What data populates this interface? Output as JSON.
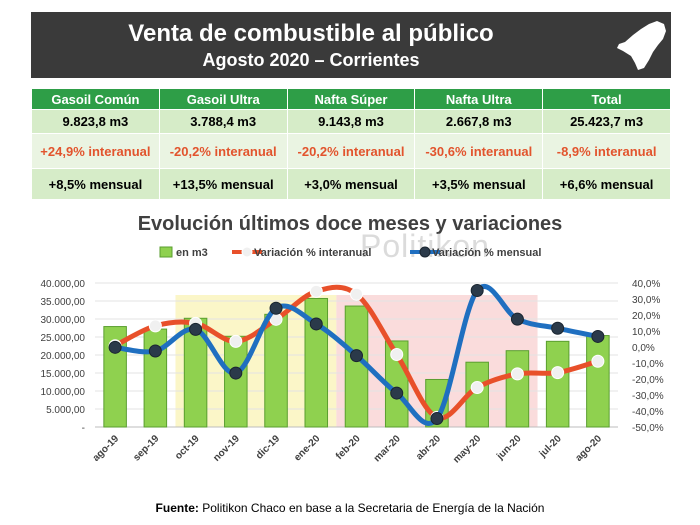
{
  "header": {
    "title": "Venta de combustible al público",
    "subtitle": "Agosto 2020 – Corrientes"
  },
  "summary": {
    "columns": [
      "Gasoil Común",
      "Gasoil Ultra",
      "Nafta Súper",
      "Nafta Ultra",
      "Total"
    ],
    "volumes": [
      "9.823,8 m3",
      "3.788,4 m3",
      "9.143,8 m3",
      "2.667,8 m3",
      "25.423,7 m3"
    ],
    "interanual": [
      "+24,9% interanual",
      "-20,2% interanual",
      "-20,2% interanual",
      "-30,6% interanual",
      "-8,9% interanual"
    ],
    "mensual": [
      "+8,5% mensual",
      "+13,5% mensual",
      "+3,0% mensual",
      "+3,5% mensual",
      "+6,6% mensual"
    ]
  },
  "watermark": "Politikon",
  "source": {
    "label": "Fuente:",
    "text": " Politikon Chaco en base a la Secretaria de Energía de la Nación"
  },
  "colors": {
    "header_bg": "#3a3a3a",
    "table_header": "#2e9e47",
    "bar_fill": "#8fd14f",
    "bar_stroke": "#5a9e2f",
    "interanual_line": "#e8502a",
    "mensual_line": "#1f6fc0",
    "highlight_yellow": "#fbf6c8",
    "highlight_red": "#fadcdc"
  },
  "chart_data": {
    "type": "bar",
    "title": "Evolución últimos doce meses y variaciones",
    "categories": [
      "ago-19",
      "sep-19",
      "oct-19",
      "nov-19",
      "dic-19",
      "ene-20",
      "feb-20",
      "mar-20",
      "abr-20",
      "may-20",
      "jun-20",
      "jul-20",
      "ago-20"
    ],
    "y_left": {
      "range": [
        0,
        40000
      ],
      "ticks": [
        "-",
        "5.000,00",
        "10.000,00",
        "15.000,00",
        "20.000,00",
        "25.000,00",
        "30.000,00",
        "35.000,00",
        "40.000,00"
      ]
    },
    "y_right": {
      "range": [
        -50,
        40
      ],
      "ticks": [
        "-50,0%",
        "-40,0%",
        "-30,0%",
        "-20,0%",
        "-10,0%",
        "0,0%",
        "10,0%",
        "20,0%",
        "30,0%",
        "40,0%"
      ]
    },
    "series": [
      {
        "name": "en m3",
        "type": "bar",
        "axis": "left",
        "values": [
          27900,
          27200,
          30200,
          25200,
          31300,
          35700,
          33600,
          23900,
          13200,
          18000,
          21200,
          23800,
          25400
        ]
      },
      {
        "name": "Variación % interanual",
        "type": "line",
        "axis": "right",
        "values": [
          0.8,
          13.2,
          14.8,
          3.5,
          17.3,
          34.8,
          33.0,
          -4.7,
          -44.0,
          -25.3,
          -16.8,
          -16.0,
          -8.9
        ]
      },
      {
        "name": "Variación % mensual",
        "type": "line",
        "axis": "right",
        "values": [
          -0.2,
          -2.5,
          11.0,
          -16.3,
          24.2,
          14.4,
          -5.4,
          -28.8,
          -44.7,
          35.3,
          17.4,
          11.7,
          6.6
        ]
      }
    ],
    "highlights": [
      {
        "from": "oct-19",
        "to": "ene-20",
        "color": "yellow"
      },
      {
        "from": "feb-20",
        "to": "jun-20",
        "color": "red"
      }
    ],
    "legend_position": "top"
  }
}
